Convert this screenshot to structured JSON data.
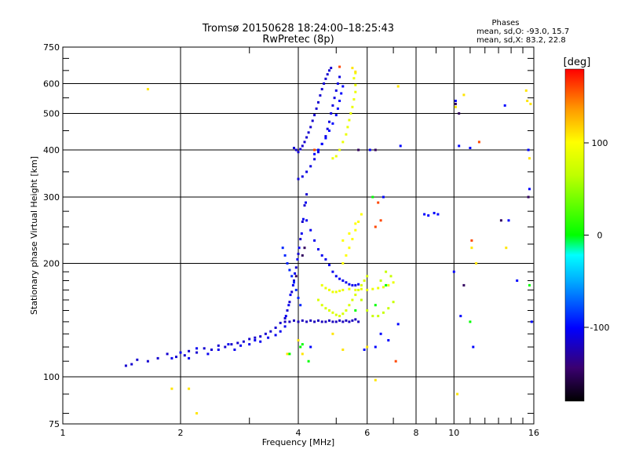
{
  "chart_data": {
    "type": "scatter",
    "title": "Tromsø 20150628 18:24:00–18:25:43",
    "subtitle": "RwPretec (8p)",
    "xlabel": "Frequency [MHz]",
    "ylabel": "Stationary phase Virtual Height [km]",
    "x_scale": "log",
    "y_scale": "log",
    "xlim": [
      1,
      16
    ],
    "ylim": [
      75,
      750
    ],
    "x_ticks": [
      1,
      2,
      4,
      6,
      8,
      10,
      16
    ],
    "x_tick_labels": [
      "1",
      "2",
      "4",
      "6",
      "8",
      "10",
      "16"
    ],
    "y_ticks": [
      75,
      100,
      200,
      300,
      400,
      500,
      600,
      750
    ],
    "y_tick_labels": [
      "75",
      "100",
      "200",
      "300",
      "400",
      "500",
      "600",
      "750"
    ],
    "grid": true,
    "stats": {
      "heading": "Phases",
      "line_o": "mean, sd,O: -93.0, 15.7",
      "line_x": "mean, sd,X: 83.2, 22.8"
    },
    "colorbar": {
      "label": "[deg]",
      "range": [
        -180,
        180
      ],
      "ticks": [
        100,
        0,
        -100
      ],
      "tick_labels": [
        "100",
        "0",
        "-100"
      ]
    },
    "series": [
      {
        "phase": -115,
        "points": [
          [
            1.45,
            107
          ],
          [
            1.5,
            108
          ],
          [
            1.55,
            111
          ],
          [
            1.65,
            110
          ],
          [
            1.75,
            112
          ],
          [
            1.85,
            115
          ],
          [
            1.95,
            113
          ],
          [
            2.05,
            114
          ],
          [
            2.1,
            117
          ],
          [
            2.2,
            116
          ],
          [
            2.3,
            119
          ],
          [
            2.4,
            118
          ],
          [
            2.5,
            121
          ],
          [
            2.6,
            120
          ],
          [
            2.7,
            122
          ],
          [
            2.8,
            123
          ],
          [
            2.9,
            124
          ],
          [
            3.0,
            126
          ],
          [
            3.1,
            127
          ],
          [
            3.2,
            128
          ],
          [
            3.3,
            130
          ],
          [
            3.4,
            132
          ],
          [
            3.5,
            135
          ],
          [
            3.6,
            139
          ],
          [
            3.7,
            143
          ],
          [
            3.75,
            150
          ],
          [
            3.8,
            158
          ],
          [
            3.85,
            168
          ],
          [
            3.9,
            180
          ],
          [
            3.95,
            195
          ],
          [
            4.0,
            212
          ],
          [
            4.05,
            232
          ],
          [
            4.1,
            258
          ],
          [
            4.15,
            285
          ],
          [
            4.2,
            305
          ]
        ]
      },
      {
        "phase": -105,
        "points": [
          [
            1.9,
            112
          ],
          [
            2.0,
            116
          ],
          [
            2.1,
            112
          ],
          [
            2.2,
            119
          ],
          [
            2.35,
            115
          ],
          [
            2.5,
            118
          ],
          [
            2.65,
            122
          ],
          [
            2.75,
            118
          ],
          [
            2.85,
            121
          ],
          [
            3.0,
            122
          ],
          [
            3.1,
            125
          ],
          [
            3.2,
            124
          ],
          [
            3.35,
            127
          ],
          [
            3.5,
            129
          ],
          [
            3.6,
            132
          ],
          [
            3.7,
            136
          ],
          [
            3.72,
            145
          ],
          [
            3.78,
            155
          ],
          [
            3.82,
            165
          ],
          [
            3.88,
            175
          ],
          [
            3.92,
            188
          ],
          [
            3.98,
            205
          ],
          [
            4.02,
            220
          ],
          [
            4.08,
            240
          ],
          [
            4.12,
            262
          ],
          [
            4.18,
            290
          ]
        ]
      },
      {
        "phase": -90,
        "points": [
          [
            3.65,
            220
          ],
          [
            3.7,
            210
          ],
          [
            3.75,
            200
          ],
          [
            3.8,
            192
          ],
          [
            3.85,
            185
          ],
          [
            3.9,
            178
          ],
          [
            3.95,
            170
          ],
          [
            4.0,
            162
          ],
          [
            4.05,
            155
          ]
        ]
      },
      {
        "phase": -120,
        "points": [
          [
            3.7,
            140
          ],
          [
            3.8,
            140
          ],
          [
            3.9,
            141
          ],
          [
            4.0,
            140
          ],
          [
            4.1,
            141
          ],
          [
            4.2,
            140
          ],
          [
            4.3,
            141
          ],
          [
            4.4,
            140
          ],
          [
            4.5,
            141
          ],
          [
            4.6,
            140
          ],
          [
            4.7,
            140
          ],
          [
            4.8,
            141
          ],
          [
            4.9,
            140
          ],
          [
            5.0,
            140
          ],
          [
            5.1,
            141
          ],
          [
            5.2,
            140
          ],
          [
            5.3,
            141
          ],
          [
            5.4,
            140
          ],
          [
            5.5,
            141
          ],
          [
            5.6,
            142
          ],
          [
            5.7,
            140
          ]
        ]
      },
      {
        "phase": -105,
        "points": [
          [
            4.2,
            260
          ],
          [
            4.3,
            245
          ],
          [
            4.4,
            230
          ],
          [
            4.5,
            218
          ],
          [
            4.6,
            210
          ],
          [
            4.7,
            205
          ],
          [
            4.8,
            198
          ],
          [
            4.9,
            190
          ],
          [
            5.0,
            185
          ],
          [
            5.1,
            182
          ],
          [
            5.2,
            180
          ],
          [
            5.3,
            178
          ],
          [
            5.4,
            176
          ],
          [
            5.5,
            175
          ],
          [
            5.6,
            175
          ],
          [
            5.7,
            176
          ]
        ]
      },
      {
        "phase": -110,
        "points": [
          [
            4.0,
            335
          ],
          [
            4.1,
            340
          ],
          [
            4.2,
            350
          ],
          [
            4.3,
            362
          ],
          [
            4.4,
            378
          ],
          [
            4.5,
            395
          ],
          [
            4.6,
            415
          ],
          [
            4.7,
            435
          ],
          [
            4.75,
            455
          ],
          [
            4.8,
            475
          ],
          [
            4.85,
            500
          ],
          [
            4.9,
            525
          ],
          [
            4.95,
            550
          ],
          [
            5.0,
            575
          ],
          [
            5.05,
            600
          ],
          [
            5.1,
            625
          ]
        ]
      },
      {
        "phase": -115,
        "points": [
          [
            3.9,
            405
          ],
          [
            3.95,
            400
          ],
          [
            4.0,
            395
          ],
          [
            4.05,
            402
          ],
          [
            4.1,
            410
          ],
          [
            4.15,
            420
          ],
          [
            4.2,
            432
          ],
          [
            4.25,
            445
          ],
          [
            4.3,
            460
          ],
          [
            4.35,
            478
          ],
          [
            4.4,
            495
          ],
          [
            4.45,
            515
          ],
          [
            4.5,
            535
          ],
          [
            4.55,
            558
          ],
          [
            4.6,
            580
          ],
          [
            4.65,
            600
          ],
          [
            4.7,
            618
          ],
          [
            4.75,
            635
          ],
          [
            4.8,
            650
          ],
          [
            4.85,
            660
          ]
        ]
      },
      {
        "phase": -100,
        "points": [
          [
            4.4,
            390
          ],
          [
            4.5,
            400
          ],
          [
            4.6,
            415
          ],
          [
            4.7,
            430
          ],
          [
            4.8,
            450
          ],
          [
            4.9,
            470
          ],
          [
            5.0,
            495
          ],
          [
            5.05,
            515
          ],
          [
            5.1,
            540
          ],
          [
            5.15,
            565
          ],
          [
            5.2,
            590
          ]
        ]
      },
      {
        "phase": 90,
        "points": [
          [
            4.9,
            380
          ],
          [
            5.0,
            385
          ],
          [
            5.1,
            400
          ],
          [
            5.2,
            420
          ],
          [
            5.3,
            440
          ],
          [
            5.35,
            460
          ],
          [
            5.4,
            480
          ],
          [
            5.45,
            500
          ],
          [
            5.5,
            520
          ],
          [
            5.55,
            545
          ],
          [
            5.6,
            570
          ],
          [
            5.6,
            595
          ],
          [
            5.55,
            620
          ],
          [
            5.6,
            640
          ]
        ]
      },
      {
        "phase": 80,
        "points": [
          [
            4.5,
            160
          ],
          [
            4.6,
            155
          ],
          [
            4.7,
            152
          ],
          [
            4.8,
            150
          ],
          [
            4.9,
            148
          ],
          [
            5.0,
            146
          ],
          [
            5.1,
            145
          ],
          [
            5.2,
            147
          ],
          [
            5.3,
            150
          ],
          [
            5.4,
            155
          ],
          [
            5.5,
            160
          ],
          [
            5.6,
            165
          ],
          [
            5.7,
            170
          ],
          [
            5.8,
            175
          ],
          [
            5.9,
            180
          ],
          [
            6.0,
            185
          ]
        ]
      },
      {
        "phase": 90,
        "points": [
          [
            4.6,
            175
          ],
          [
            4.7,
            172
          ],
          [
            4.8,
            170
          ],
          [
            4.9,
            168
          ],
          [
            5.0,
            168
          ],
          [
            5.1,
            169
          ],
          [
            5.2,
            170
          ],
          [
            5.4,
            171
          ],
          [
            5.6,
            170
          ],
          [
            5.8,
            171
          ],
          [
            6.0,
            170
          ],
          [
            6.2,
            171
          ],
          [
            6.4,
            172
          ],
          [
            6.6,
            173
          ],
          [
            6.8,
            175
          ],
          [
            7.0,
            178
          ]
        ]
      },
      {
        "phase": 100,
        "points": [
          [
            5.2,
            200
          ],
          [
            5.3,
            210
          ],
          [
            5.4,
            220
          ],
          [
            5.5,
            232
          ],
          [
            5.6,
            245
          ],
          [
            5.7,
            258
          ],
          [
            5.8,
            270
          ],
          [
            5.2,
            230
          ],
          [
            5.4,
            240
          ],
          [
            5.6,
            255
          ]
        ]
      },
      {
        "phase": 70,
        "points": [
          [
            5.8,
            160
          ],
          [
            6.0,
            150
          ],
          [
            6.2,
            145
          ],
          [
            6.4,
            145
          ],
          [
            6.6,
            148
          ],
          [
            6.8,
            152
          ],
          [
            7.0,
            158
          ],
          [
            6.5,
            180
          ],
          [
            6.7,
            190
          ],
          [
            6.9,
            185
          ]
        ]
      },
      {
        "phase": -100,
        "points": [
          [
            8.4,
            270
          ],
          [
            8.6,
            268
          ],
          [
            8.9,
            272
          ],
          [
            9.1,
            270
          ],
          [
            10.0,
            190
          ],
          [
            10.1,
            540
          ],
          [
            10.3,
            410
          ],
          [
            11.0,
            405
          ],
          [
            13.5,
            525
          ],
          [
            13.8,
            260
          ],
          [
            14.5,
            180
          ],
          [
            15.5,
            400
          ],
          [
            15.6,
            315
          ],
          [
            15.8,
            140
          ],
          [
            10.4,
            145
          ],
          [
            11.2,
            120
          ],
          [
            7.2,
            138
          ],
          [
            6.3,
            120
          ],
          [
            5.9,
            118
          ],
          [
            6.1,
            400
          ],
          [
            7.3,
            410
          ],
          [
            6.6,
            300
          ],
          [
            6.5,
            130
          ],
          [
            6.8,
            125
          ],
          [
            4.3,
            120
          ]
        ]
      },
      {
        "phase": 110,
        "points": [
          [
            1.65,
            580
          ],
          [
            1.9,
            93
          ],
          [
            2.1,
            93
          ],
          [
            2.2,
            80
          ],
          [
            7.2,
            590
          ],
          [
            10.2,
            90
          ],
          [
            10.1,
            520
          ],
          [
            10.6,
            560
          ],
          [
            11.1,
            220
          ],
          [
            11.4,
            200
          ],
          [
            13.6,
            220
          ],
          [
            15.3,
            575
          ],
          [
            15.4,
            540
          ],
          [
            15.7,
            530
          ],
          [
            15.6,
            380
          ],
          [
            5.6,
            645
          ],
          [
            5.5,
            660
          ],
          [
            3.75,
            115
          ],
          [
            4.0,
            125
          ],
          [
            4.1,
            115
          ],
          [
            4.9,
            130
          ],
          [
            6.0,
            120
          ],
          [
            6.3,
            98
          ],
          [
            5.2,
            118
          ]
        ]
      },
      {
        "phase": 0,
        "points": [
          [
            4.05,
            120
          ],
          [
            4.1,
            122
          ],
          [
            4.25,
            110
          ],
          [
            3.8,
            115
          ],
          [
            5.6,
            150
          ],
          [
            6.3,
            155
          ],
          [
            11.0,
            140
          ],
          [
            15.6,
            175
          ],
          [
            6.2,
            300
          ],
          [
            6.7,
            175
          ]
        ]
      },
      {
        "phase": 160,
        "points": [
          [
            11.1,
            230
          ],
          [
            6.4,
            290
          ],
          [
            6.5,
            260
          ],
          [
            6.3,
            250
          ],
          [
            4.4,
            400
          ],
          [
            5.1,
            665
          ],
          [
            7.1,
            110
          ],
          [
            11.6,
            420
          ]
        ]
      },
      {
        "phase": -150,
        "points": [
          [
            10.1,
            530
          ],
          [
            10.3,
            500
          ],
          [
            10.6,
            175
          ],
          [
            15.5,
            300
          ],
          [
            6.3,
            400
          ],
          [
            4.1,
            210
          ],
          [
            3.95,
            185
          ],
          [
            4.15,
            220
          ],
          [
            5.7,
            400
          ],
          [
            13.2,
            260
          ]
        ]
      }
    ]
  }
}
